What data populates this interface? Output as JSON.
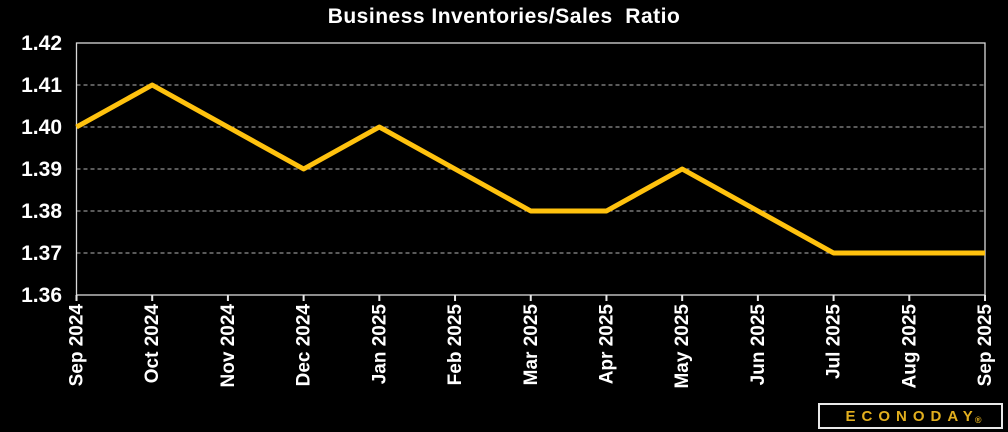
{
  "chart_data": {
    "type": "line",
    "title": "Business Inventories/Sales  Ratio",
    "xlabel": "",
    "ylabel": "",
    "categories": [
      "Sep 2024",
      "Oct 2024",
      "Nov 2024",
      "Dec 2024",
      "Jan 2025",
      "Feb 2025",
      "Mar 2025",
      "Apr 2025",
      "May 2025",
      "Jun 2025",
      "Jul 2025",
      "Aug 2025",
      "Sep 2025"
    ],
    "series": [
      {
        "name": "Business Inventories/Sales Ratio",
        "values": [
          1.4,
          1.41,
          1.4,
          1.39,
          1.4,
          1.39,
          1.38,
          1.38,
          1.39,
          1.38,
          1.37,
          1.37,
          1.37
        ]
      }
    ],
    "ylim": [
      1.36,
      1.42
    ],
    "y_tick_labels": [
      "1.42",
      "1.41",
      "1.40",
      "1.39",
      "1.38",
      "1.37",
      "1.36"
    ],
    "grid": "horizontal-dashed",
    "legend": "none",
    "colors": {
      "background": "#000000",
      "line": "#ffc20e",
      "text": "#ffffff",
      "gridline": "#b4b4b4",
      "plot_border": "#d9d9d9",
      "tick": "#e8e8e8"
    }
  },
  "logo": {
    "text": "ECONODAY",
    "registered": "®"
  }
}
